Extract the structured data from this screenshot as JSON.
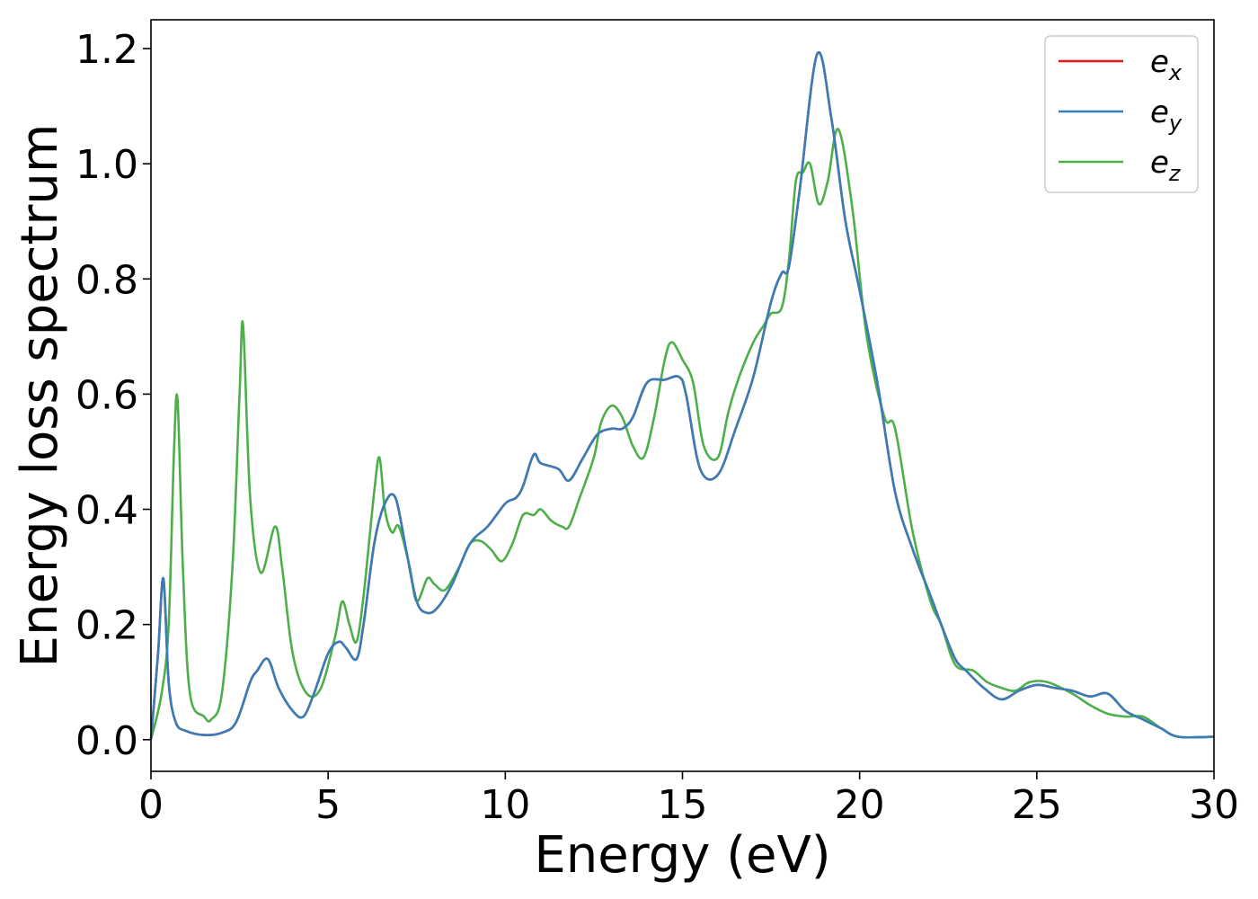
{
  "chart_data": {
    "type": "line",
    "title": "",
    "xlabel": "Energy (eV)",
    "ylabel": "Energy loss spectrum",
    "xlim": [
      0,
      30
    ],
    "ylim": [
      -0.055,
      1.25
    ],
    "xticks": [
      0,
      5,
      10,
      15,
      20,
      25,
      30
    ],
    "xtick_labels": [
      "0",
      "5",
      "10",
      "15",
      "20",
      "25",
      "30"
    ],
    "yticks": [
      0.0,
      0.2,
      0.4,
      0.6,
      0.8,
      1.0,
      1.2
    ],
    "ytick_labels": [
      "0.0",
      "0.2",
      "0.4",
      "0.6",
      "0.8",
      "1.0",
      "1.2"
    ],
    "grid": false,
    "legend_position": "top-right",
    "series": [
      {
        "name": "e_x",
        "legend_base": "e",
        "legend_sub": "x",
        "color": "#e41a1c",
        "x": [
          0.0,
          0.2,
          0.35,
          0.5,
          0.7,
          1.0,
          1.5,
          2.0,
          2.4,
          2.8,
          3.0,
          3.3,
          3.6,
          4.0,
          4.3,
          4.6,
          5.0,
          5.3,
          5.5,
          5.8,
          6.0,
          6.3,
          6.6,
          6.9,
          7.2,
          7.5,
          7.8,
          8.1,
          8.5,
          9.0,
          9.5,
          10.0,
          10.3,
          10.5,
          10.8,
          11.0,
          11.5,
          11.8,
          12.2,
          12.6,
          13.0,
          13.3,
          13.6,
          14.0,
          14.5,
          14.9,
          15.1,
          15.5,
          16.0,
          16.5,
          17.0,
          17.5,
          17.8,
          18.0,
          18.3,
          18.8,
          19.2,
          19.6,
          20.0,
          20.5,
          21.0,
          21.5,
          22.0,
          22.3,
          22.7,
          23.0,
          23.5,
          24.0,
          24.5,
          25.0,
          25.5,
          26.0,
          26.5,
          27.0,
          27.5,
          28.0,
          28.5,
          29.0,
          30.0
        ],
        "y": [
          0.0,
          0.15,
          0.28,
          0.1,
          0.03,
          0.015,
          0.008,
          0.012,
          0.03,
          0.1,
          0.12,
          0.14,
          0.09,
          0.05,
          0.04,
          0.08,
          0.15,
          0.17,
          0.16,
          0.14,
          0.2,
          0.34,
          0.41,
          0.42,
          0.33,
          0.24,
          0.22,
          0.23,
          0.27,
          0.34,
          0.37,
          0.41,
          0.42,
          0.44,
          0.495,
          0.48,
          0.47,
          0.45,
          0.49,
          0.53,
          0.54,
          0.54,
          0.56,
          0.62,
          0.625,
          0.63,
          0.6,
          0.47,
          0.46,
          0.54,
          0.63,
          0.76,
          0.81,
          0.82,
          0.95,
          1.19,
          1.08,
          0.9,
          0.78,
          0.62,
          0.43,
          0.33,
          0.25,
          0.2,
          0.14,
          0.12,
          0.09,
          0.07,
          0.085,
          0.095,
          0.09,
          0.085,
          0.075,
          0.08,
          0.05,
          0.035,
          0.02,
          0.005,
          0.005
        ]
      },
      {
        "name": "e_y",
        "legend_base": "e",
        "legend_sub": "y",
        "color": "#377eb8",
        "x": [
          0.0,
          0.2,
          0.35,
          0.5,
          0.7,
          1.0,
          1.5,
          2.0,
          2.4,
          2.8,
          3.0,
          3.3,
          3.6,
          4.0,
          4.3,
          4.6,
          5.0,
          5.3,
          5.5,
          5.8,
          6.0,
          6.3,
          6.6,
          6.9,
          7.2,
          7.5,
          7.8,
          8.1,
          8.5,
          9.0,
          9.5,
          10.0,
          10.3,
          10.5,
          10.8,
          11.0,
          11.5,
          11.8,
          12.2,
          12.6,
          13.0,
          13.3,
          13.6,
          14.0,
          14.5,
          14.9,
          15.1,
          15.5,
          16.0,
          16.5,
          17.0,
          17.5,
          17.8,
          18.0,
          18.3,
          18.8,
          19.2,
          19.6,
          20.0,
          20.5,
          21.0,
          21.5,
          22.0,
          22.3,
          22.7,
          23.0,
          23.5,
          24.0,
          24.5,
          25.0,
          25.5,
          26.0,
          26.5,
          27.0,
          27.5,
          28.0,
          28.5,
          29.0,
          30.0
        ],
        "y": [
          0.0,
          0.15,
          0.28,
          0.1,
          0.03,
          0.015,
          0.008,
          0.012,
          0.03,
          0.1,
          0.12,
          0.14,
          0.09,
          0.05,
          0.04,
          0.08,
          0.15,
          0.17,
          0.16,
          0.14,
          0.2,
          0.34,
          0.41,
          0.42,
          0.33,
          0.24,
          0.22,
          0.23,
          0.27,
          0.34,
          0.37,
          0.41,
          0.42,
          0.44,
          0.495,
          0.48,
          0.47,
          0.45,
          0.49,
          0.53,
          0.54,
          0.54,
          0.56,
          0.62,
          0.625,
          0.63,
          0.6,
          0.47,
          0.46,
          0.54,
          0.63,
          0.76,
          0.81,
          0.82,
          0.95,
          1.19,
          1.08,
          0.9,
          0.78,
          0.62,
          0.43,
          0.33,
          0.25,
          0.2,
          0.14,
          0.12,
          0.09,
          0.07,
          0.085,
          0.095,
          0.09,
          0.085,
          0.075,
          0.08,
          0.05,
          0.035,
          0.02,
          0.005,
          0.005
        ]
      },
      {
        "name": "e_z",
        "legend_base": "e",
        "legend_sub": "z",
        "color": "#4daf4a",
        "x": [
          0.0,
          0.3,
          0.5,
          0.65,
          0.75,
          0.9,
          1.1,
          1.5,
          1.7,
          2.0,
          2.3,
          2.5,
          2.6,
          2.8,
          3.1,
          3.5,
          3.7,
          4.0,
          4.4,
          4.8,
          5.2,
          5.4,
          5.6,
          5.8,
          6.0,
          6.3,
          6.45,
          6.6,
          6.8,
          7.0,
          7.3,
          7.5,
          7.8,
          8.0,
          8.3,
          8.7,
          9.0,
          9.3,
          9.6,
          9.9,
          10.2,
          10.5,
          10.8,
          11.0,
          11.3,
          11.6,
          11.8,
          12.1,
          12.5,
          12.7,
          13.0,
          13.3,
          13.6,
          13.9,
          14.2,
          14.5,
          14.7,
          15.0,
          15.3,
          15.6,
          16.0,
          16.3,
          16.6,
          17.0,
          17.3,
          17.5,
          17.8,
          18.0,
          18.2,
          18.4,
          18.6,
          18.85,
          19.1,
          19.4,
          19.8,
          20.2,
          20.7,
          21.0,
          21.5,
          22.0,
          22.3,
          22.7,
          23.2,
          23.6,
          24.0,
          24.4,
          24.8,
          25.3,
          26.0,
          26.5,
          27.0,
          27.5,
          28.0,
          28.5,
          29.0,
          30.0
        ],
        "y": [
          0.0,
          0.08,
          0.2,
          0.5,
          0.59,
          0.3,
          0.08,
          0.04,
          0.035,
          0.08,
          0.3,
          0.6,
          0.72,
          0.42,
          0.29,
          0.37,
          0.3,
          0.15,
          0.08,
          0.09,
          0.18,
          0.24,
          0.2,
          0.17,
          0.25,
          0.43,
          0.49,
          0.4,
          0.36,
          0.37,
          0.3,
          0.24,
          0.28,
          0.27,
          0.26,
          0.3,
          0.34,
          0.345,
          0.33,
          0.31,
          0.34,
          0.39,
          0.39,
          0.4,
          0.38,
          0.37,
          0.37,
          0.42,
          0.49,
          0.55,
          0.58,
          0.56,
          0.51,
          0.49,
          0.56,
          0.66,
          0.69,
          0.66,
          0.62,
          0.51,
          0.49,
          0.57,
          0.63,
          0.69,
          0.72,
          0.74,
          0.75,
          0.83,
          0.97,
          0.985,
          1.0,
          0.93,
          0.97,
          1.06,
          0.92,
          0.7,
          0.56,
          0.54,
          0.36,
          0.24,
          0.2,
          0.13,
          0.12,
          0.1,
          0.09,
          0.085,
          0.1,
          0.1,
          0.08,
          0.06,
          0.045,
          0.04,
          0.04,
          0.02,
          0.005,
          0.005
        ]
      }
    ]
  }
}
